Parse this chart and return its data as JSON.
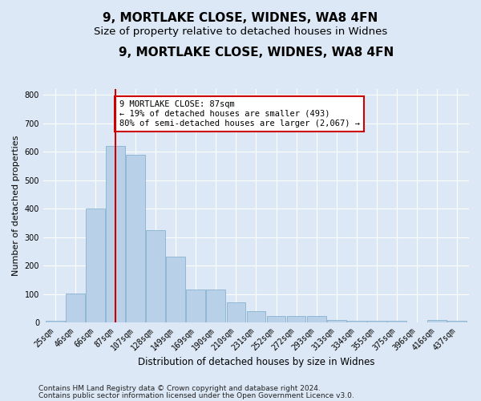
{
  "title": "9, MORTLAKE CLOSE, WIDNES, WA8 4FN",
  "subtitle": "Size of property relative to detached houses in Widnes",
  "xlabel": "Distribution of detached houses by size in Widnes",
  "ylabel": "Number of detached properties",
  "categories": [
    "25sqm",
    "46sqm",
    "66sqm",
    "87sqm",
    "107sqm",
    "128sqm",
    "149sqm",
    "169sqm",
    "190sqm",
    "210sqm",
    "231sqm",
    "252sqm",
    "272sqm",
    "293sqm",
    "313sqm",
    "334sqm",
    "355sqm",
    "375sqm",
    "396sqm",
    "416sqm",
    "437sqm"
  ],
  "values": [
    5,
    103,
    400,
    620,
    590,
    325,
    230,
    115,
    115,
    70,
    40,
    22,
    22,
    22,
    10,
    5,
    5,
    5,
    0,
    10,
    5
  ],
  "bar_color": "#b8d0e8",
  "bar_edge_color": "#7aaac8",
  "vline_x_index": 3,
  "vline_color": "#cc0000",
  "annotation_text": "9 MORTLAKE CLOSE: 87sqm\n← 19% of detached houses are smaller (493)\n80% of semi-detached houses are larger (2,067) →",
  "annotation_box_color": "white",
  "annotation_box_edge": "#cc0000",
  "ylim": [
    0,
    820
  ],
  "yticks": [
    0,
    100,
    200,
    300,
    400,
    500,
    600,
    700,
    800
  ],
  "background_color": "#dce8f5",
  "plot_bg_color": "#dce8f5",
  "footer_line1": "Contains HM Land Registry data © Crown copyright and database right 2024.",
  "footer_line2": "Contains public sector information licensed under the Open Government Licence v3.0.",
  "title_fontsize": 11,
  "subtitle_fontsize": 9.5,
  "xlabel_fontsize": 8.5,
  "ylabel_fontsize": 8,
  "tick_fontsize": 7,
  "footer_fontsize": 6.5,
  "annotation_fontsize": 7.5
}
